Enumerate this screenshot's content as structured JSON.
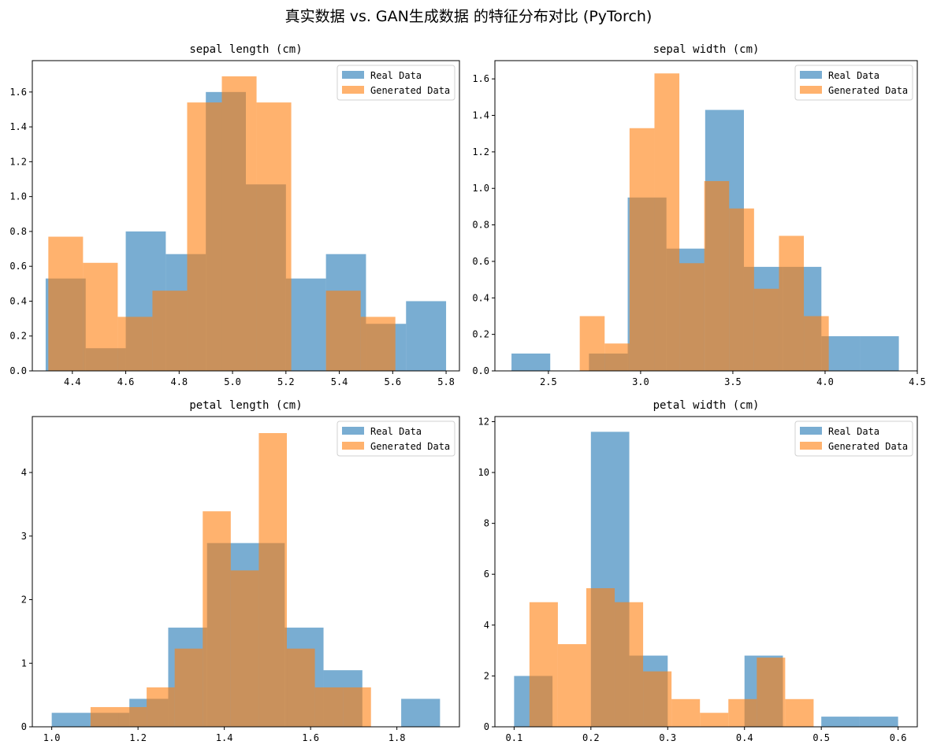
{
  "figure": {
    "suptitle": "真实数据 vs. GAN生成数据 的特征分布对比 (PyTorch)"
  },
  "colors": {
    "real": "#1f77b4",
    "generated": "#ff7f0e"
  },
  "chart_data": [
    {
      "type": "histogram",
      "title": "sepal length (cm)",
      "xlim": [
        4.25,
        5.85
      ],
      "ylim": [
        0,
        1.78
      ],
      "xticks": [
        4.4,
        4.6,
        4.8,
        5.0,
        5.2,
        5.4,
        5.6,
        5.8
      ],
      "xtick_labels": [
        "4.4",
        "4.6",
        "4.8",
        "5.0",
        "5.2",
        "5.4",
        "5.6",
        "5.8"
      ],
      "yticks": [
        0,
        0.2,
        0.4,
        0.6,
        0.8,
        1.0,
        1.2,
        1.4,
        1.6
      ],
      "ytick_labels": [
        "0.0",
        "0.2",
        "0.4",
        "0.6",
        "0.8",
        "1.0",
        "1.2",
        "1.4",
        "1.6"
      ],
      "legend": {
        "placement": "top-right",
        "entries": [
          "Real Data",
          "Generated Data"
        ]
      },
      "series": [
        {
          "name": "Real Data",
          "color": "#1f77b4",
          "bins": [
            4.3,
            4.45,
            4.6,
            4.75,
            4.9,
            5.05,
            5.2,
            5.35,
            5.5,
            5.65,
            5.8
          ],
          "values": [
            0.53,
            0.13,
            0.8,
            0.67,
            1.6,
            1.07,
            0.53,
            0.67,
            0.27,
            0.4
          ]
        },
        {
          "name": "Generated Data",
          "color": "#ff7f0e",
          "bins": [
            4.31,
            4.44,
            4.57,
            4.7,
            4.83,
            4.96,
            5.09,
            5.22,
            5.35,
            5.48,
            5.61
          ],
          "values": [
            0.77,
            0.62,
            0.31,
            0.46,
            1.54,
            1.69,
            1.54,
            0,
            0.46,
            0.31
          ]
        }
      ]
    },
    {
      "type": "histogram",
      "title": "sepal width (cm)",
      "xlim": [
        2.21,
        4.5
      ],
      "ylim": [
        0,
        1.7
      ],
      "xticks": [
        2.5,
        3.0,
        3.5,
        4.0,
        4.5
      ],
      "xtick_labels": [
        "2.5",
        "3.0",
        "3.5",
        "4.0",
        "4.5"
      ],
      "yticks": [
        0,
        0.2,
        0.4,
        0.6,
        0.8,
        1.0,
        1.2,
        1.4,
        1.6
      ],
      "ytick_labels": [
        "0.0",
        "0.2",
        "0.4",
        "0.6",
        "0.8",
        "1.0",
        "1.2",
        "1.4",
        "1.6"
      ],
      "legend": {
        "placement": "top-right",
        "entries": [
          "Real Data",
          "Generated Data"
        ]
      },
      "series": [
        {
          "name": "Real Data",
          "color": "#1f77b4",
          "bins": [
            2.3,
            2.51,
            2.72,
            2.93,
            3.14,
            3.35,
            3.56,
            3.77,
            3.98,
            4.19,
            4.4
          ],
          "values": [
            0.095,
            0,
            0.095,
            0.95,
            0.67,
            1.43,
            0.57,
            0.57,
            0.19,
            0.19
          ]
        },
        {
          "name": "Generated Data",
          "color": "#ff7f0e",
          "bins": [
            2.67,
            2.805,
            2.94,
            3.075,
            3.21,
            3.345,
            3.48,
            3.615,
            3.75,
            3.885,
            4.02
          ],
          "values": [
            0.3,
            0.15,
            1.33,
            1.63,
            0.59,
            1.04,
            0.89,
            0.45,
            0.74,
            0.3
          ]
        }
      ]
    },
    {
      "type": "histogram",
      "title": "petal length (cm)",
      "xlim": [
        0.955,
        1.945
      ],
      "ylim": [
        0,
        4.88
      ],
      "xticks": [
        1.0,
        1.2,
        1.4,
        1.6,
        1.8
      ],
      "xtick_labels": [
        "1.0",
        "1.2",
        "1.4",
        "1.6",
        "1.8"
      ],
      "yticks": [
        0,
        1,
        2,
        3,
        4
      ],
      "ytick_labels": [
        "0",
        "1",
        "2",
        "3",
        "4"
      ],
      "legend": {
        "placement": "top-right",
        "entries": [
          "Real Data",
          "Generated Data"
        ]
      },
      "series": [
        {
          "name": "Real Data",
          "color": "#1f77b4",
          "bins": [
            1.0,
            1.09,
            1.18,
            1.27,
            1.36,
            1.45,
            1.54,
            1.63,
            1.72,
            1.81,
            1.9
          ],
          "values": [
            0.22,
            0.22,
            0.44,
            1.56,
            2.89,
            2.89,
            1.56,
            0.89,
            0,
            0.44
          ]
        },
        {
          "name": "Generated Data",
          "color": "#ff7f0e",
          "bins": [
            1.09,
            1.155,
            1.22,
            1.285,
            1.35,
            1.415,
            1.48,
            1.545,
            1.61,
            1.675,
            1.74
          ],
          "values": [
            0.31,
            0.31,
            0.62,
            1.23,
            3.39,
            2.46,
            4.62,
            1.23,
            0.62,
            0.62
          ]
        }
      ]
    },
    {
      "type": "histogram",
      "title": "petal width (cm)",
      "xlim": [
        0.075,
        0.625
      ],
      "ylim": [
        0,
        12.2
      ],
      "xticks": [
        0.1,
        0.2,
        0.3,
        0.4,
        0.5,
        0.6
      ],
      "xtick_labels": [
        "0.1",
        "0.2",
        "0.3",
        "0.4",
        "0.5",
        "0.6"
      ],
      "yticks": [
        0,
        2,
        4,
        6,
        8,
        10,
        12
      ],
      "ytick_labels": [
        "0",
        "2",
        "4",
        "6",
        "8",
        "10",
        "12"
      ],
      "legend": {
        "placement": "top-right",
        "entries": [
          "Real Data",
          "Generated Data"
        ]
      },
      "series": [
        {
          "name": "Real Data",
          "color": "#1f77b4",
          "bins": [
            0.1,
            0.15,
            0.2,
            0.25,
            0.3,
            0.35,
            0.4,
            0.45,
            0.5,
            0.55,
            0.6
          ],
          "values": [
            2.0,
            0,
            11.6,
            2.8,
            0,
            0,
            2.8,
            0,
            0.4,
            0.4
          ]
        },
        {
          "name": "Generated Data",
          "color": "#ff7f0e",
          "bins": [
            0.12,
            0.157,
            0.194,
            0.231,
            0.268,
            0.305,
            0.342,
            0.379,
            0.416,
            0.453,
            0.49
          ],
          "values": [
            4.9,
            3.25,
            5.45,
            4.9,
            2.18,
            1.09,
            0.55,
            1.09,
            2.72,
            1.09
          ]
        }
      ]
    }
  ]
}
